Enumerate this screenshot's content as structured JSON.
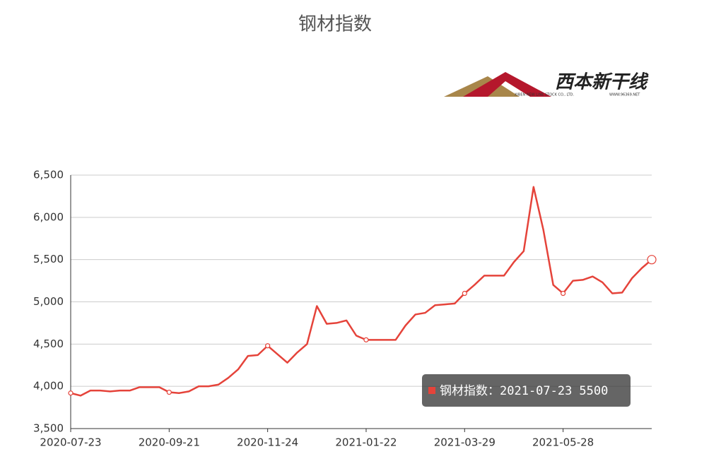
{
  "chart_data": {
    "type": "line",
    "title": "钢材指数",
    "logo": {
      "name": "西本新干线",
      "company": "XIBEN NEW LINE STOCK CO., LTD.",
      "site": "WWW.96369.NET"
    },
    "categories": [
      "2020-07-23",
      null,
      null,
      null,
      null,
      null,
      null,
      null,
      null,
      null,
      "2020-09-21",
      null,
      null,
      null,
      null,
      null,
      null,
      null,
      null,
      null,
      "2020-11-24",
      null,
      null,
      null,
      null,
      null,
      null,
      null,
      null,
      null,
      "2021-01-22",
      null,
      null,
      null,
      null,
      null,
      null,
      null,
      null,
      null,
      "2021-03-29",
      null,
      null,
      null,
      null,
      null,
      null,
      null,
      null,
      null,
      "2021-05-28",
      null,
      null,
      null,
      null,
      null,
      null,
      null,
      null,
      null
    ],
    "series": [
      {
        "name": "钢材指数",
        "color": "#e5433a",
        "values": [
          3920,
          3890,
          3950,
          3950,
          3940,
          3950,
          3950,
          3990,
          3990,
          3990,
          3930,
          3920,
          3940,
          4000,
          4000,
          4020,
          4100,
          4200,
          4360,
          4370,
          4480,
          4380,
          4280,
          4400,
          4500,
          4950,
          4740,
          4750,
          4780,
          4600,
          4550,
          4550,
          4550,
          4550,
          4720,
          4850,
          4870,
          4960,
          4970,
          4980,
          5100,
          5200,
          5310,
          5310,
          5310,
          5470,
          5600,
          6360,
          5850,
          5200,
          5100,
          5250,
          5260,
          5300,
          5230,
          5100,
          5110,
          5280,
          5400,
          5500
        ]
      }
    ],
    "ylim": [
      3500,
      6500
    ],
    "yticks": [
      {
        "value": 3500,
        "label": "3,500"
      },
      {
        "value": 4000,
        "label": "4,000"
      },
      {
        "value": 4500,
        "label": "4,500"
      },
      {
        "value": 5000,
        "label": "5,000"
      },
      {
        "value": 5500,
        "label": "5,500"
      },
      {
        "value": 6000,
        "label": "6,000"
      },
      {
        "value": 6500,
        "label": "6,500"
      }
    ],
    "grid": true,
    "tooltip": {
      "series": "钢材指数：",
      "date": "2021-07-23",
      "value": 5500
    }
  }
}
